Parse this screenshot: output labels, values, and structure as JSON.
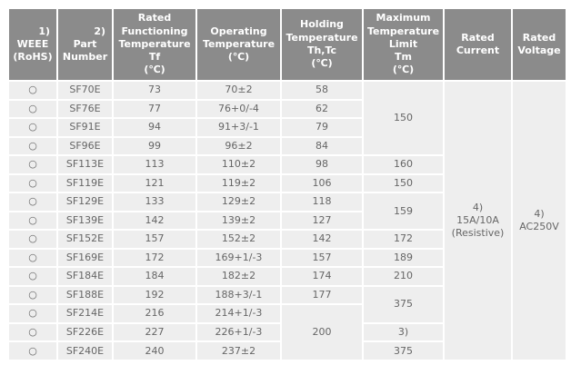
{
  "colors": {
    "header_bg": "#8b8b8b",
    "header_text": "#ffffff",
    "row_bg": "#eeeeee",
    "body_text": "#666666",
    "border": "#ffffff"
  },
  "symbols": {
    "rohs_compliant_mark": "○"
  },
  "table": {
    "columns": [
      {
        "key": "weee",
        "sup": "1)",
        "lines": [
          "WEEE",
          "(RoHS)"
        ]
      },
      {
        "key": "part-number",
        "sup": "2)",
        "lines": [
          "Part",
          "Number"
        ]
      },
      {
        "key": "rated-functioning-temperature",
        "lines": [
          "Rated",
          "Functioning",
          "Temperature",
          "Tf",
          "(℃)"
        ]
      },
      {
        "key": "operating-temperature",
        "lines": [
          "Operating",
          "Temperature",
          "(℃)"
        ]
      },
      {
        "key": "holding-temperature",
        "lines": [
          "Holding",
          "Temperature",
          "Th,Tc",
          "(℃)"
        ]
      },
      {
        "key": "maximum-temperature-limit",
        "lines": [
          "Maximum",
          "Temperature",
          "Limit",
          "Tm",
          "(℃)"
        ]
      },
      {
        "key": "rated-current",
        "lines": [
          "Rated",
          "Current"
        ]
      },
      {
        "key": "rated-voltage",
        "lines": [
          "Rated",
          "Voltage"
        ]
      }
    ],
    "rows": [
      {
        "cells": [
          {
            "col": "weee",
            "text": "○"
          },
          {
            "col": "part-number",
            "text": "SF70E"
          },
          {
            "col": "rated-functioning-temperature",
            "text": "73"
          },
          {
            "col": "operating-temperature",
            "text": "70±2"
          },
          {
            "col": "holding-temperature",
            "text": "58"
          },
          {
            "col": "maximum-temperature-limit",
            "text": "150",
            "rowspan": 4
          },
          {
            "col": "rated-current",
            "lines": [
              "4)",
              "15A/10A",
              "(Resistive)"
            ],
            "rowspan": 15
          },
          {
            "col": "rated-voltage",
            "lines": [
              "4)",
              "AC250V"
            ],
            "rowspan": 15
          }
        ]
      },
      {
        "cells": [
          {
            "col": "weee",
            "text": "○"
          },
          {
            "col": "part-number",
            "text": "SF76E"
          },
          {
            "col": "rated-functioning-temperature",
            "text": "77"
          },
          {
            "col": "operating-temperature",
            "text": "76+0/-4"
          },
          {
            "col": "holding-temperature",
            "text": "62"
          }
        ]
      },
      {
        "cells": [
          {
            "col": "weee",
            "text": "○"
          },
          {
            "col": "part-number",
            "text": "SF91E"
          },
          {
            "col": "rated-functioning-temperature",
            "text": "94"
          },
          {
            "col": "operating-temperature",
            "text": "91+3/-1"
          },
          {
            "col": "holding-temperature",
            "text": "79"
          }
        ]
      },
      {
        "cells": [
          {
            "col": "weee",
            "text": "○"
          },
          {
            "col": "part-number",
            "text": "SF96E"
          },
          {
            "col": "rated-functioning-temperature",
            "text": "99"
          },
          {
            "col": "operating-temperature",
            "text": "96±2"
          },
          {
            "col": "holding-temperature",
            "text": "84"
          }
        ]
      },
      {
        "cells": [
          {
            "col": "weee",
            "text": "○"
          },
          {
            "col": "part-number",
            "text": "SF113E"
          },
          {
            "col": "rated-functioning-temperature",
            "text": "113"
          },
          {
            "col": "operating-temperature",
            "text": "110±2"
          },
          {
            "col": "holding-temperature",
            "text": "98"
          },
          {
            "col": "maximum-temperature-limit",
            "text": "160"
          }
        ]
      },
      {
        "cells": [
          {
            "col": "weee",
            "text": "○"
          },
          {
            "col": "part-number",
            "text": "SF119E"
          },
          {
            "col": "rated-functioning-temperature",
            "text": "121"
          },
          {
            "col": "operating-temperature",
            "text": "119±2"
          },
          {
            "col": "holding-temperature",
            "text": "106"
          },
          {
            "col": "maximum-temperature-limit",
            "text": "150"
          }
        ]
      },
      {
        "cells": [
          {
            "col": "weee",
            "text": "○"
          },
          {
            "col": "part-number",
            "text": "SF129E"
          },
          {
            "col": "rated-functioning-temperature",
            "text": "133"
          },
          {
            "col": "operating-temperature",
            "text": "129±2"
          },
          {
            "col": "holding-temperature",
            "text": "118"
          },
          {
            "col": "maximum-temperature-limit",
            "text": "159",
            "rowspan": 2
          }
        ]
      },
      {
        "cells": [
          {
            "col": "weee",
            "text": "○"
          },
          {
            "col": "part-number",
            "text": "SF139E"
          },
          {
            "col": "rated-functioning-temperature",
            "text": "142"
          },
          {
            "col": "operating-temperature",
            "text": "139±2"
          },
          {
            "col": "holding-temperature",
            "text": "127"
          }
        ]
      },
      {
        "cells": [
          {
            "col": "weee",
            "text": "○"
          },
          {
            "col": "part-number",
            "text": "SF152E"
          },
          {
            "col": "rated-functioning-temperature",
            "text": "157"
          },
          {
            "col": "operating-temperature",
            "text": "152±2"
          },
          {
            "col": "holding-temperature",
            "text": "142"
          },
          {
            "col": "maximum-temperature-limit",
            "text": "172"
          }
        ]
      },
      {
        "cells": [
          {
            "col": "weee",
            "text": "○"
          },
          {
            "col": "part-number",
            "text": "SF169E"
          },
          {
            "col": "rated-functioning-temperature",
            "text": "172"
          },
          {
            "col": "operating-temperature",
            "text": "169+1/-3"
          },
          {
            "col": "holding-temperature",
            "text": "157"
          },
          {
            "col": "maximum-temperature-limit",
            "text": "189"
          }
        ]
      },
      {
        "cells": [
          {
            "col": "weee",
            "text": "○"
          },
          {
            "col": "part-number",
            "text": "SF184E"
          },
          {
            "col": "rated-functioning-temperature",
            "text": "184"
          },
          {
            "col": "operating-temperature",
            "text": "182±2"
          },
          {
            "col": "holding-temperature",
            "text": "174"
          },
          {
            "col": "maximum-temperature-limit",
            "text": "210"
          }
        ]
      },
      {
        "cells": [
          {
            "col": "weee",
            "text": "○"
          },
          {
            "col": "part-number",
            "text": "SF188E"
          },
          {
            "col": "rated-functioning-temperature",
            "text": "192"
          },
          {
            "col": "operating-temperature",
            "text": "188+3/-1"
          },
          {
            "col": "holding-temperature",
            "text": "177"
          },
          {
            "col": "maximum-temperature-limit",
            "text": "375",
            "rowspan": 2
          }
        ]
      },
      {
        "cells": [
          {
            "col": "weee",
            "text": "○"
          },
          {
            "col": "part-number",
            "text": "SF214E"
          },
          {
            "col": "rated-functioning-temperature",
            "text": "216"
          },
          {
            "col": "operating-temperature",
            "text": "214+1/-3"
          },
          {
            "col": "holding-temperature",
            "text": "200",
            "rowspan": 3
          }
        ]
      },
      {
        "cells": [
          {
            "col": "weee",
            "text": "○"
          },
          {
            "col": "part-number",
            "text": "SF226E"
          },
          {
            "col": "rated-functioning-temperature",
            "text": "227"
          },
          {
            "col": "operating-temperature",
            "text": "226+1/-3"
          },
          {
            "col": "maximum-temperature-limit",
            "text": "3)"
          }
        ]
      },
      {
        "cells": [
          {
            "col": "weee",
            "text": "○"
          },
          {
            "col": "part-number",
            "text": "SF240E"
          },
          {
            "col": "rated-functioning-temperature",
            "text": "240"
          },
          {
            "col": "operating-temperature",
            "text": "237±2"
          },
          {
            "col": "maximum-temperature-limit",
            "text": "375"
          }
        ]
      }
    ]
  }
}
